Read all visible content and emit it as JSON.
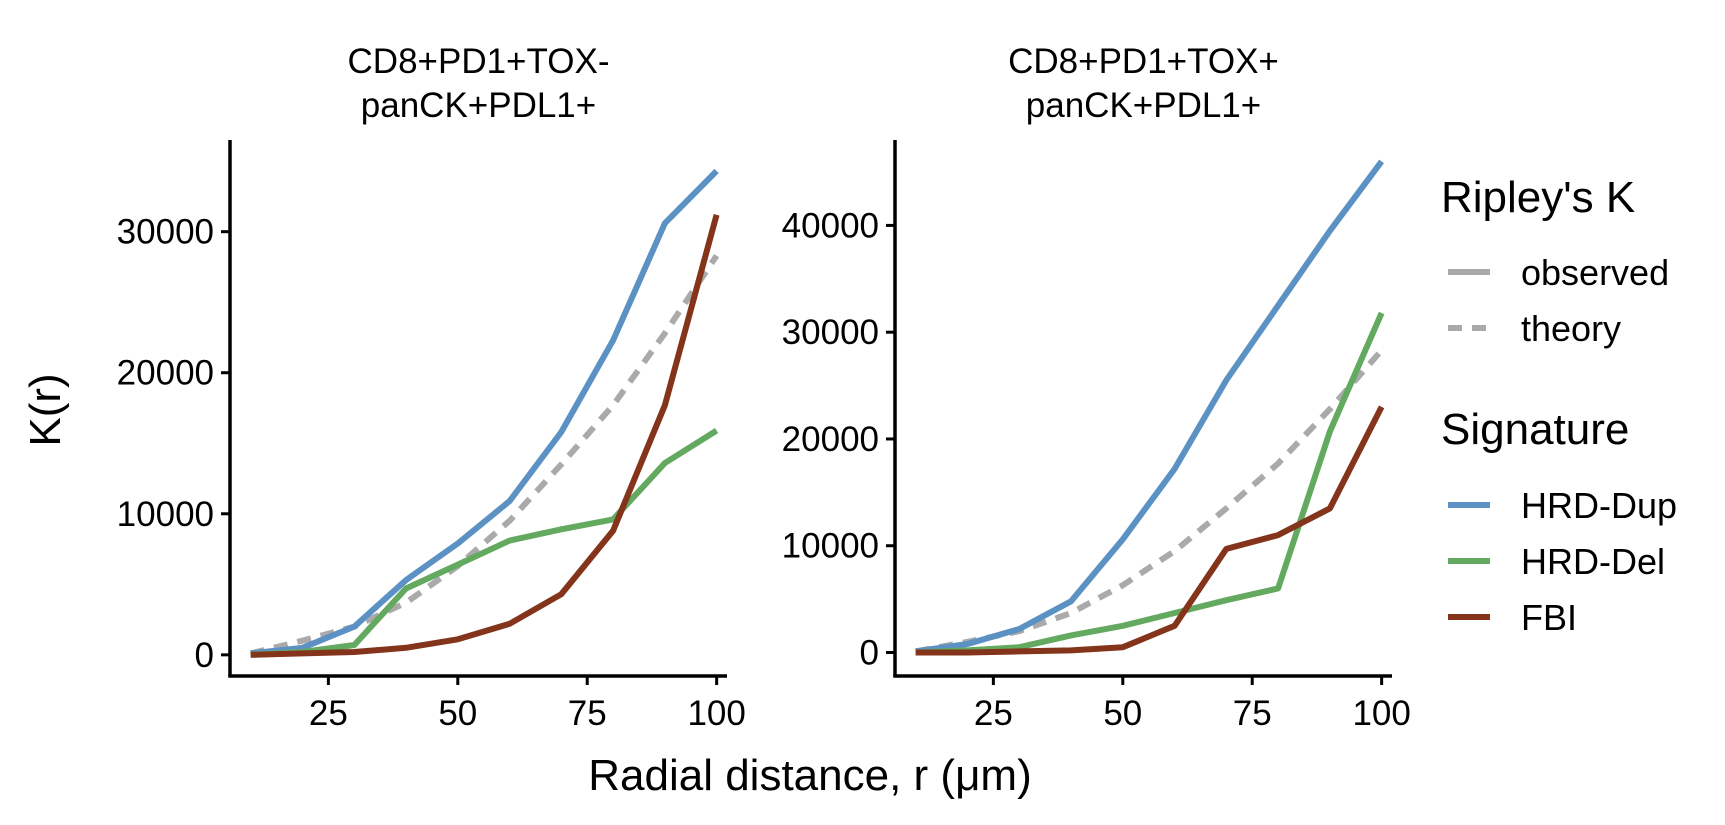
{
  "chart_data": {
    "type": "line",
    "xlabel": "Radial distance, r (μm)",
    "ylabel": "K(r)",
    "colors": {
      "HRD-Dup": "#5b92c3",
      "HRD-Del": "#63a95f",
      "FBI": "#84341a",
      "theory": "#aaaaaa"
    },
    "legends": [
      {
        "title": "Ripley's K",
        "entries": [
          {
            "label": "observed",
            "style": "solid",
            "color": "#aaaaaa"
          },
          {
            "label": "theory",
            "style": "dashed",
            "color": "#aaaaaa"
          }
        ]
      },
      {
        "title": "Signature",
        "entries": [
          {
            "label": "HRD-Dup",
            "style": "solid",
            "color": "#5b92c3"
          },
          {
            "label": "HRD-Del",
            "style": "solid",
            "color": "#63a95f"
          },
          {
            "label": "FBI",
            "style": "solid",
            "color": "#84341a"
          }
        ]
      }
    ],
    "legend_position": "right",
    "grid": false,
    "panels": [
      {
        "title_lines": [
          "CD8+PD1+TOX-",
          "panCK+PDL1+"
        ],
        "xlim": [
          6,
          102
        ],
        "ylim": [
          -1500,
          36500
        ],
        "x_ticks": [
          25,
          50,
          75,
          100
        ],
        "y_ticks": [
          0,
          10000,
          20000,
          30000
        ],
        "x": [
          10,
          20,
          30,
          40,
          50,
          60,
          70,
          80,
          90,
          100
        ],
        "series": [
          {
            "name": "theory",
            "style": "dashed",
            "values": [
              100,
              1000,
              2000,
              3700,
              6300,
              9500,
              13500,
              17700,
              22800,
              28300
            ]
          },
          {
            "name": "HRD-Dup",
            "style": "solid",
            "values": [
              100,
              500,
              2000,
              5300,
              7900,
              10900,
              15800,
              22300,
              30600,
              34300
            ]
          },
          {
            "name": "HRD-Del",
            "style": "solid",
            "values": [
              0,
              200,
              700,
              4700,
              6400,
              8100,
              8900,
              9600,
              13600,
              15900
            ]
          },
          {
            "name": "FBI",
            "style": "solid",
            "values": [
              0,
              100,
              200,
              500,
              1100,
              2200,
              4300,
              8800,
              17700,
              31200
            ]
          }
        ]
      },
      {
        "title_lines": [
          "CD8+PD1+TOX+",
          "panCK+PDL1+"
        ],
        "xlim": [
          6,
          102
        ],
        "ylim": [
          -2200,
          48000
        ],
        "x_ticks": [
          25,
          50,
          75,
          100
        ],
        "y_ticks": [
          0,
          10000,
          20000,
          30000,
          40000
        ],
        "x": [
          10,
          20,
          30,
          40,
          50,
          60,
          70,
          80,
          90,
          100
        ],
        "series": [
          {
            "name": "theory",
            "style": "dashed",
            "values": [
              100,
              1000,
              2000,
              3700,
              6300,
              9500,
              13500,
              17700,
              22800,
              28300
            ]
          },
          {
            "name": "HRD-Dup",
            "style": "solid",
            "values": [
              100,
              800,
              2200,
              4800,
              10600,
              17200,
              25500,
              32500,
              39500,
              46000
            ]
          },
          {
            "name": "HRD-Del",
            "style": "solid",
            "values": [
              0,
              200,
              500,
              1600,
              2500,
              3700,
              4900,
              6000,
              20700,
              31800
            ]
          },
          {
            "name": "FBI",
            "style": "solid",
            "values": [
              0,
              0,
              100,
              200,
              500,
              2500,
              9700,
              11000,
              13500,
              23000
            ]
          }
        ]
      }
    ]
  }
}
